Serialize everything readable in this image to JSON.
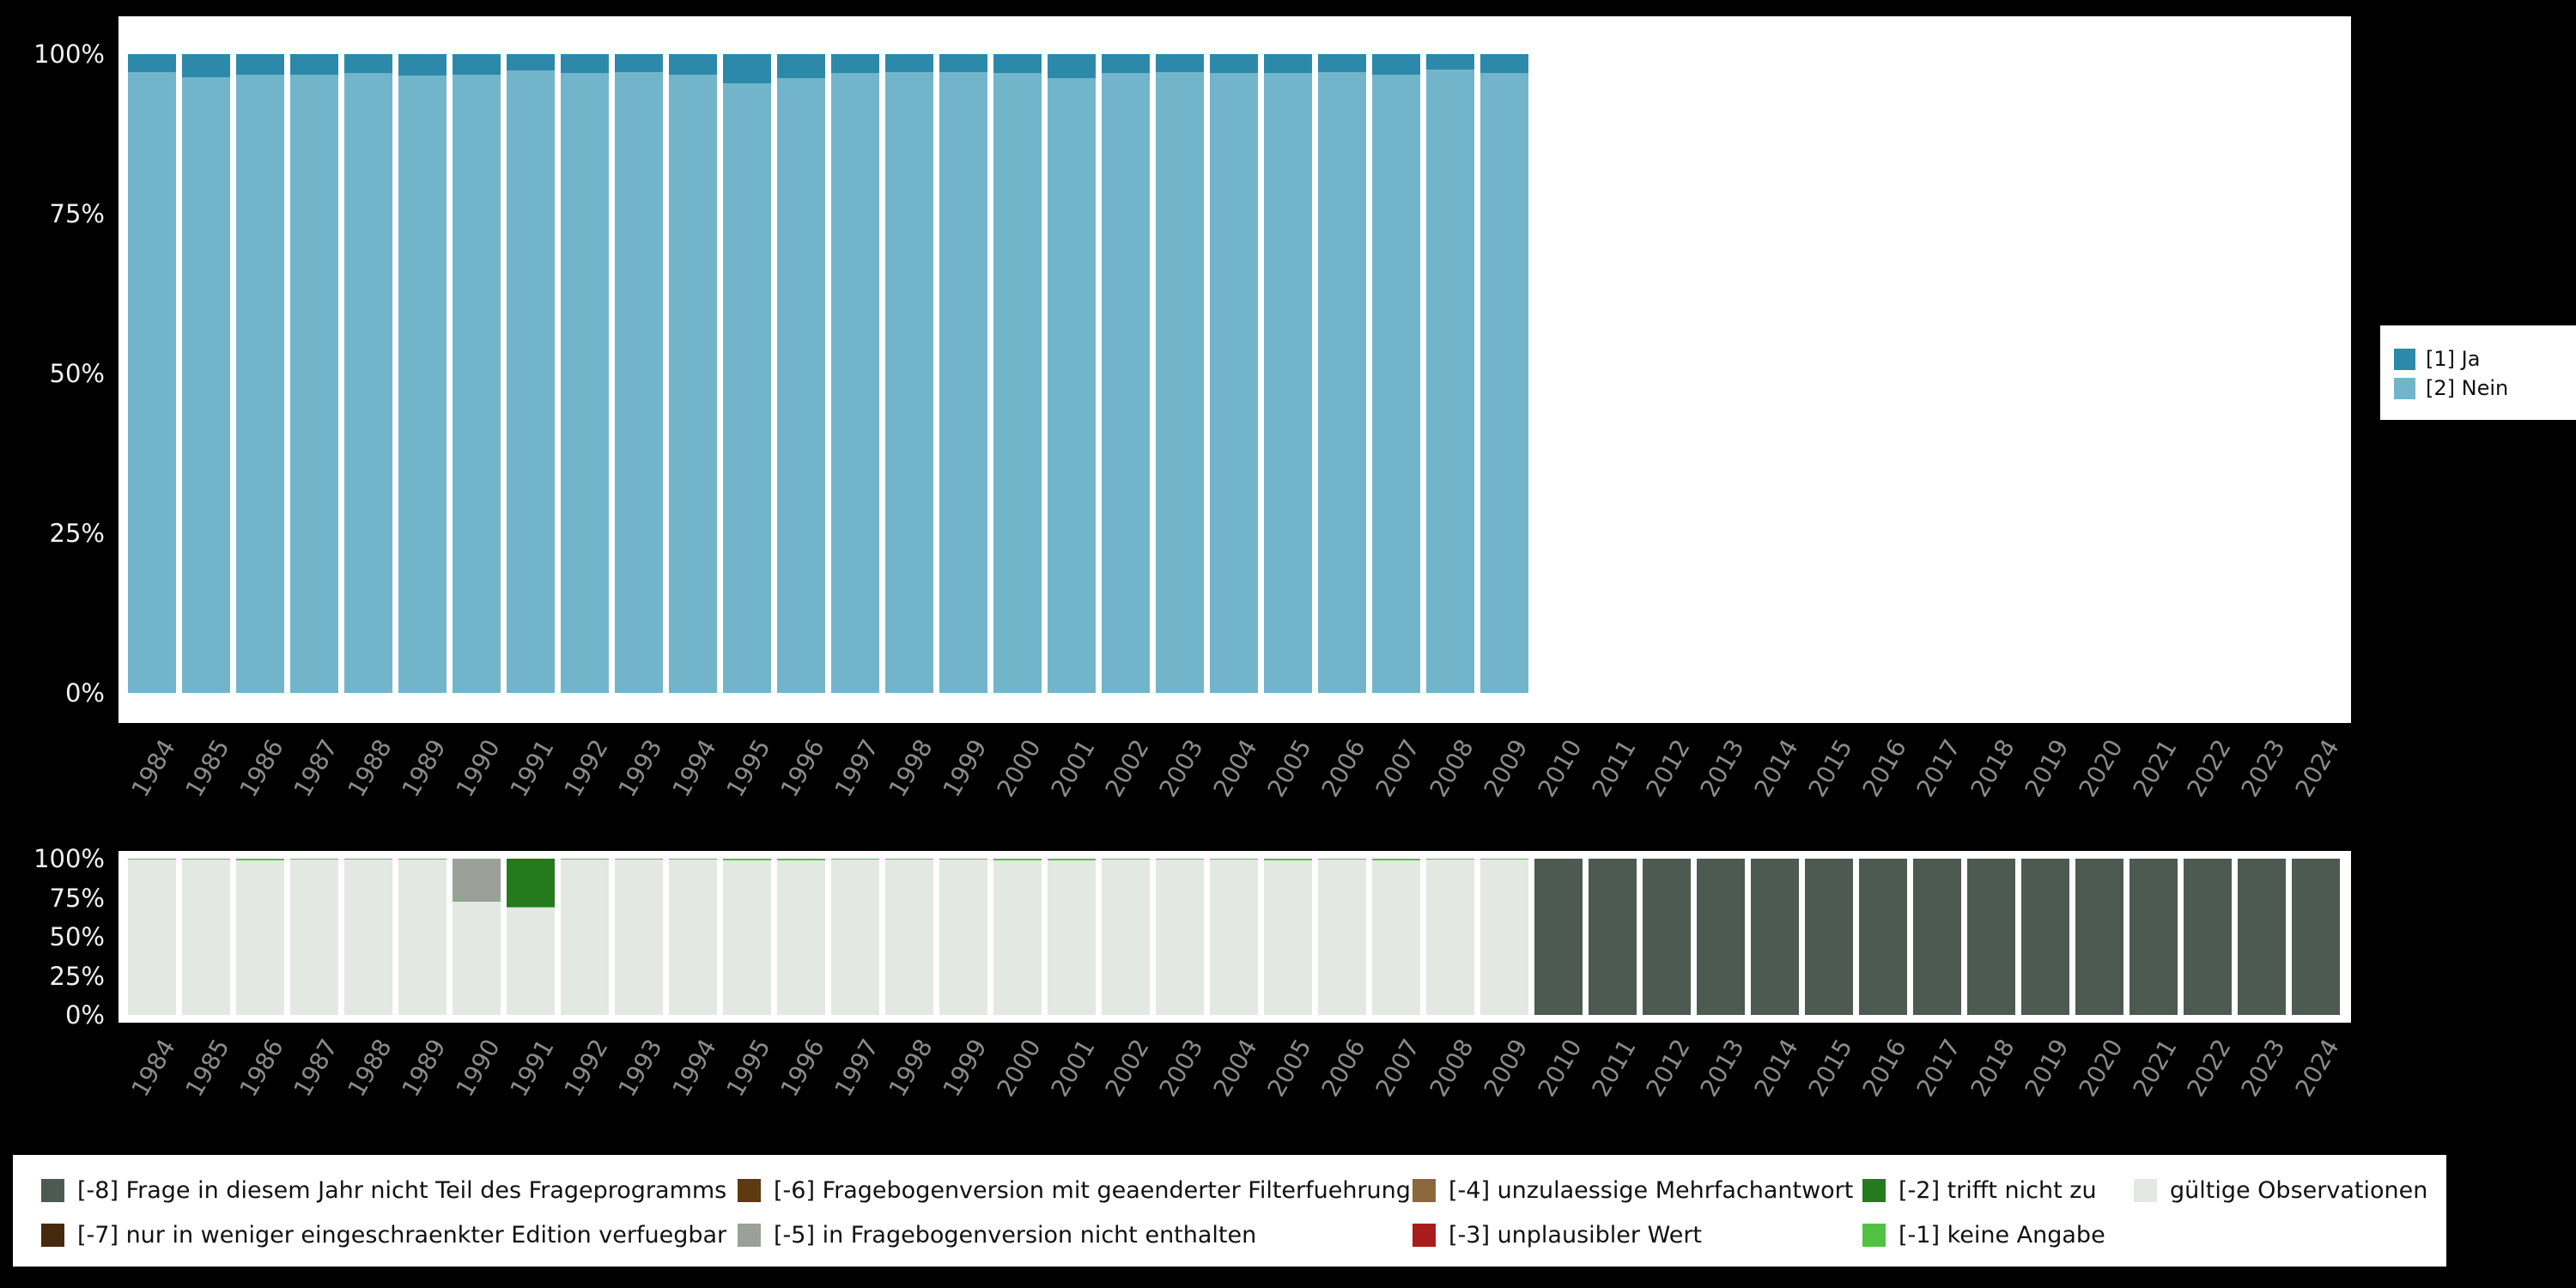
{
  "chart_data": [
    {
      "type": "bar",
      "stacked": true,
      "unit": "percent",
      "title": "",
      "xlabel": "",
      "ylabel": "",
      "ylim": [
        0,
        100
      ],
      "grid": false,
      "yticks": [
        "0%",
        "25%",
        "50%",
        "75%",
        "100%"
      ],
      "x": [
        1984,
        1985,
        1986,
        1987,
        1988,
        1989,
        1990,
        1991,
        1992,
        1993,
        1994,
        1995,
        1996,
        1997,
        1998,
        1999,
        2000,
        2001,
        2002,
        2003,
        2004,
        2005,
        2006,
        2007,
        2008,
        2009,
        2010,
        2011,
        2012,
        2013,
        2014,
        2015,
        2016,
        2017,
        2018,
        2019,
        2020,
        2021,
        2022,
        2023,
        2024
      ],
      "series": [
        {
          "key": "ja",
          "name": "[1] Ja",
          "color": "#2d89aa",
          "values": [
            2.8,
            3.6,
            3.2,
            3.2,
            3.0,
            3.4,
            3.2,
            2.6,
            3.0,
            2.8,
            3.2,
            4.6,
            3.8,
            3.0,
            2.8,
            2.8,
            3.0,
            3.8,
            3.0,
            2.8,
            3.0,
            3.0,
            2.8,
            3.2,
            2.4,
            3.0,
            null,
            null,
            null,
            null,
            null,
            null,
            null,
            null,
            null,
            null,
            null,
            null,
            null,
            null,
            null
          ]
        },
        {
          "key": "nein",
          "name": "[2] Nein",
          "color": "#72b5ca",
          "values": [
            97.2,
            96.4,
            96.8,
            96.8,
            97.0,
            96.6,
            96.8,
            97.4,
            97.0,
            97.2,
            96.8,
            95.4,
            96.2,
            97.0,
            97.2,
            97.2,
            97.0,
            96.2,
            97.0,
            97.2,
            97.0,
            97.0,
            97.2,
            96.8,
            97.6,
            97.0,
            null,
            null,
            null,
            null,
            null,
            null,
            null,
            null,
            null,
            null,
            null,
            null,
            null,
            null,
            null
          ]
        }
      ],
      "legend_position": "right",
      "legend": [
        {
          "key": "ja",
          "label": "[1] Ja",
          "color": "#2d89aa"
        },
        {
          "key": "nein",
          "label": "[2] Nein",
          "color": "#72b5ca"
        }
      ]
    },
    {
      "type": "bar",
      "stacked": true,
      "unit": "percent",
      "title": "",
      "xlabel": "",
      "ylabel": "",
      "ylim": [
        0,
        100
      ],
      "grid": false,
      "yticks": [
        "0%",
        "25%",
        "50%",
        "75%",
        "100%"
      ],
      "x": [
        1984,
        1985,
        1986,
        1987,
        1988,
        1989,
        1990,
        1991,
        1992,
        1993,
        1994,
        1995,
        1996,
        1997,
        1998,
        1999,
        2000,
        2001,
        2002,
        2003,
        2004,
        2005,
        2006,
        2007,
        2008,
        2009,
        2010,
        2011,
        2012,
        2013,
        2014,
        2015,
        2016,
        2017,
        2018,
        2019,
        2020,
        2021,
        2022,
        2023,
        2024
      ],
      "series": [
        {
          "key": "m8",
          "name": "[-8] Frage in diesem Jahr nicht Teil des Frageprogramms",
          "color": "#4d5a52",
          "values": [
            0,
            0,
            0,
            0,
            0,
            0,
            0,
            0,
            0,
            0,
            0,
            0,
            0,
            0,
            0,
            0,
            0,
            0,
            0,
            0,
            0,
            0,
            0,
            0,
            0,
            0,
            100,
            100,
            100,
            100,
            100,
            100,
            100,
            100,
            100,
            100,
            100,
            100,
            100,
            100,
            100
          ]
        },
        {
          "key": "m5",
          "name": "[-5] in Fragebogenversion nicht enthalten",
          "color": "#9ba099",
          "values": [
            0,
            0,
            0,
            0,
            0,
            0,
            27,
            0,
            0,
            0,
            0,
            0,
            0,
            0,
            0,
            0,
            0,
            0,
            0,
            0,
            0,
            0,
            0,
            0,
            0,
            0,
            0,
            0,
            0,
            0,
            0,
            0,
            0,
            0,
            0,
            0,
            0,
            0,
            0,
            0,
            0
          ]
        },
        {
          "key": "m2",
          "name": "[-2] trifft nicht zu",
          "color": "#257a1d",
          "values": [
            0,
            0,
            0,
            0,
            0,
            0,
            0,
            31,
            0,
            0,
            0,
            0,
            0,
            0,
            0,
            0,
            0,
            0,
            0,
            0,
            0,
            0,
            0,
            0,
            0,
            0,
            0,
            0,
            0,
            0,
            0,
            0,
            0,
            0,
            0,
            0,
            0,
            0,
            0,
            0,
            0
          ]
        },
        {
          "key": "m1",
          "name": "[-1] keine Angabe",
          "color": "#51c243",
          "values": [
            0.3,
            0.4,
            1,
            0.8,
            0.7,
            0.8,
            0.5,
            0.5,
            0.8,
            0.7,
            0.8,
            1,
            0.9,
            0.8,
            0.7,
            0.8,
            0.9,
            1,
            0.8,
            0.7,
            0.8,
            0.9,
            0.8,
            1,
            0.7,
            0.8,
            0,
            0,
            0,
            0,
            0,
            0,
            0,
            0,
            0,
            0,
            0,
            0,
            0,
            0,
            0
          ]
        },
        {
          "key": "valid",
          "name": "gültige Observationen",
          "color": "#e4e8e2",
          "values": [
            99.7,
            99.6,
            99,
            99.2,
            99.3,
            99.2,
            72.5,
            68.5,
            99.2,
            99.3,
            99.2,
            99,
            99.1,
            99.2,
            99.3,
            99.2,
            99.1,
            99,
            99.2,
            99.3,
            99.2,
            99.1,
            99.2,
            99,
            99.3,
            99.2,
            0,
            0,
            0,
            0,
            0,
            0,
            0,
            0,
            0,
            0,
            0,
            0,
            0,
            0,
            0
          ]
        }
      ],
      "legend_position": "bottom",
      "legend": [
        {
          "key": "m8",
          "label": "[-8] Frage in diesem Jahr nicht Teil des Frageprogramms",
          "color": "#4d5a52",
          "col": 1,
          "row": 1
        },
        {
          "key": "m7",
          "label": "[-7] nur in weniger eingeschraenkter Edition verfuegbar",
          "color": "#47290e",
          "col": 1,
          "row": 2
        },
        {
          "key": "m6",
          "label": "[-6] Fragebogenversion mit geaenderter Filterfuehrung",
          "color": "#5d3a10",
          "col": 2,
          "row": 1
        },
        {
          "key": "m5",
          "label": "[-5] in Fragebogenversion nicht enthalten",
          "color": "#9ba099",
          "col": 2,
          "row": 2
        },
        {
          "key": "m4",
          "label": "[-4] unzulaessige Mehrfachantwort",
          "color": "#8c683c",
          "col": 3,
          "row": 1
        },
        {
          "key": "m3",
          "label": "[-3] unplausibler Wert",
          "color": "#a81c1c",
          "col": 3,
          "row": 2
        },
        {
          "key": "m2",
          "label": "[-2] trifft nicht zu",
          "color": "#257a1d",
          "col": 4,
          "row": 1
        },
        {
          "key": "m1",
          "label": "[-1] keine Angabe",
          "color": "#51c243",
          "col": 4,
          "row": 2
        },
        {
          "key": "valid",
          "label": "gültige Observationen",
          "color": "#e4e8e2",
          "col": 5,
          "row": 1
        }
      ]
    }
  ]
}
